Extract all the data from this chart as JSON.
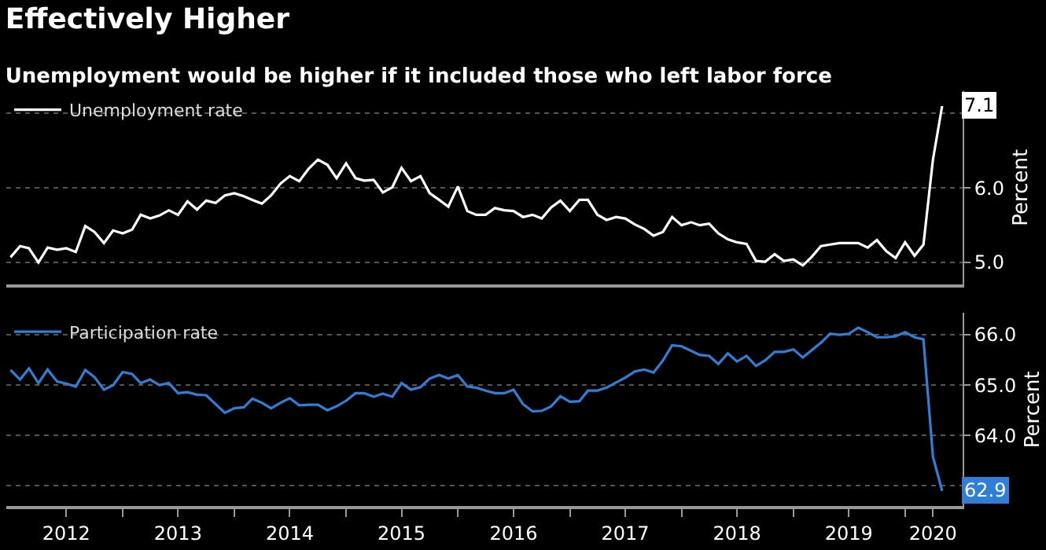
{
  "chart_data": [
    {
      "type": "line",
      "title": "Effectively Higher",
      "subtitle": "Unemployment would be higher if it included those who left labor force",
      "x": [
        "2012-01",
        "2012-02",
        "2012-03",
        "2012-04",
        "2012-05",
        "2012-06",
        "2012-07",
        "2012-08",
        "2012-09",
        "2012-10",
        "2012-11",
        "2012-12",
        "2013-01",
        "2013-02",
        "2013-03",
        "2013-04",
        "2013-05",
        "2013-06",
        "2013-07",
        "2013-08",
        "2013-09",
        "2013-10",
        "2013-11",
        "2013-12",
        "2014-01",
        "2014-02",
        "2014-03",
        "2014-04",
        "2014-05",
        "2014-06",
        "2014-07",
        "2014-08",
        "2014-09",
        "2014-10",
        "2014-11",
        "2014-12",
        "2015-01",
        "2015-02",
        "2015-03",
        "2015-04",
        "2015-05",
        "2015-06",
        "2015-07",
        "2015-08",
        "2015-09",
        "2015-10",
        "2015-11",
        "2015-12",
        "2016-01",
        "2016-02",
        "2016-03",
        "2016-04",
        "2016-05",
        "2016-06",
        "2016-07",
        "2016-08",
        "2016-09",
        "2016-10",
        "2016-11",
        "2016-12",
        "2017-01",
        "2017-02",
        "2017-03",
        "2017-04",
        "2017-05",
        "2017-06",
        "2017-07",
        "2017-08",
        "2017-09",
        "2017-10",
        "2017-11",
        "2017-12",
        "2018-01",
        "2018-02",
        "2018-03",
        "2018-04",
        "2018-05",
        "2018-06",
        "2018-07",
        "2018-08",
        "2018-09",
        "2018-10",
        "2018-11",
        "2018-12",
        "2019-01",
        "2019-02",
        "2019-03",
        "2019-04",
        "2019-05",
        "2019-06",
        "2019-07",
        "2019-08",
        "2019-09",
        "2019-10",
        "2019-11",
        "2019-12",
        "2020-01",
        "2020-02",
        "2020-03",
        "2020-04",
        "2020-05"
      ],
      "series": [
        {
          "name": "Unemployment rate",
          "color": "#ffffff",
          "values": [
            5.07,
            5.22,
            5.19,
            5.0,
            5.2,
            5.17,
            5.19,
            5.14,
            5.49,
            5.41,
            5.26,
            5.43,
            5.39,
            5.44,
            5.64,
            5.59,
            5.63,
            5.7,
            5.64,
            5.82,
            5.71,
            5.83,
            5.8,
            5.9,
            5.93,
            5.89,
            5.84,
            5.79,
            5.9,
            6.06,
            6.16,
            6.09,
            6.26,
            6.38,
            6.31,
            6.13,
            6.33,
            6.13,
            6.1,
            6.11,
            5.94,
            6.01,
            6.27,
            6.09,
            6.16,
            5.93,
            5.84,
            5.75,
            6.02,
            5.69,
            5.64,
            5.64,
            5.73,
            5.7,
            5.69,
            5.61,
            5.64,
            5.59,
            5.74,
            5.83,
            5.69,
            5.84,
            5.84,
            5.64,
            5.57,
            5.61,
            5.59,
            5.51,
            5.45,
            5.36,
            5.41,
            5.61,
            5.5,
            5.54,
            5.5,
            5.52,
            5.39,
            5.31,
            5.27,
            5.25,
            5.02,
            5.01,
            5.11,
            5.02,
            5.04,
            4.96,
            5.07,
            5.22,
            5.24,
            5.26,
            5.26,
            5.26,
            5.2,
            5.3,
            5.15,
            5.06,
            5.27,
            5.09,
            5.24,
            6.38,
            7.1
          ]
        }
      ],
      "annotations": [
        {
          "text": "7.1",
          "x": "2020-05",
          "y": 7.1
        }
      ],
      "xlim": [
        "2011-12-18",
        "2020-07-07"
      ],
      "ylim": [
        4.71,
        7.3
      ],
      "yticks": [
        {
          "value": 5.0,
          "label": "5.0"
        },
        {
          "value": 6.0,
          "label": "6.0"
        },
        {
          "value": 7.0,
          "label": null
        }
      ],
      "ylabel": "Percent",
      "grid": "y",
      "legend": "top left",
      "marker": "none",
      "line_style": "solid",
      "tick_labels": "y"
    },
    {
      "type": "line",
      "x": [
        "2012-01",
        "2012-02",
        "2012-03",
        "2012-04",
        "2012-05",
        "2012-06",
        "2012-07",
        "2012-08",
        "2012-09",
        "2012-10",
        "2012-11",
        "2012-12",
        "2013-01",
        "2013-02",
        "2013-03",
        "2013-04",
        "2013-05",
        "2013-06",
        "2013-07",
        "2013-08",
        "2013-09",
        "2013-10",
        "2013-11",
        "2013-12",
        "2014-01",
        "2014-02",
        "2014-03",
        "2014-04",
        "2014-05",
        "2014-06",
        "2014-07",
        "2014-08",
        "2014-09",
        "2014-10",
        "2014-11",
        "2014-12",
        "2015-01",
        "2015-02",
        "2015-03",
        "2015-04",
        "2015-05",
        "2015-06",
        "2015-07",
        "2015-08",
        "2015-09",
        "2015-10",
        "2015-11",
        "2015-12",
        "2016-01",
        "2016-02",
        "2016-03",
        "2016-04",
        "2016-05",
        "2016-06",
        "2016-07",
        "2016-08",
        "2016-09",
        "2016-10",
        "2016-11",
        "2016-12",
        "2017-01",
        "2017-02",
        "2017-03",
        "2017-04",
        "2017-05",
        "2017-06",
        "2017-07",
        "2017-08",
        "2017-09",
        "2017-10",
        "2017-11",
        "2017-12",
        "2018-01",
        "2018-02",
        "2018-03",
        "2018-04",
        "2018-05",
        "2018-06",
        "2018-07",
        "2018-08",
        "2018-09",
        "2018-10",
        "2018-11",
        "2018-12",
        "2019-01",
        "2019-02",
        "2019-03",
        "2019-04",
        "2019-05",
        "2019-06",
        "2019-07",
        "2019-08",
        "2019-09",
        "2019-10",
        "2019-11",
        "2019-12",
        "2020-01",
        "2020-02",
        "2020-03",
        "2020-04",
        "2020-05"
      ],
      "series": [
        {
          "name": "Participation rate",
          "color": "#2f7fd6",
          "values": [
            65.3,
            65.11,
            65.33,
            65.04,
            65.31,
            65.07,
            65.03,
            64.97,
            65.3,
            65.16,
            64.91,
            65.0,
            65.26,
            65.22,
            65.04,
            65.11,
            65.0,
            65.04,
            64.84,
            64.86,
            64.81,
            64.8,
            64.62,
            64.45,
            64.54,
            64.56,
            64.73,
            64.65,
            64.54,
            64.65,
            64.74,
            64.6,
            64.61,
            64.61,
            64.5,
            64.58,
            64.69,
            64.84,
            64.84,
            64.77,
            64.83,
            64.77,
            65.04,
            64.91,
            64.96,
            65.13,
            65.2,
            65.13,
            65.2,
            64.97,
            64.95,
            64.89,
            64.84,
            64.84,
            64.91,
            64.62,
            64.48,
            64.49,
            64.58,
            64.78,
            64.67,
            64.68,
            64.89,
            64.89,
            64.95,
            65.05,
            65.15,
            65.27,
            65.31,
            65.25,
            65.49,
            65.79,
            65.77,
            65.68,
            65.6,
            65.58,
            65.42,
            65.63,
            65.47,
            65.58,
            65.38,
            65.49,
            65.66,
            65.66,
            65.71,
            65.55,
            65.69,
            65.84,
            66.02,
            66.0,
            66.02,
            66.14,
            66.05,
            65.95,
            65.95,
            65.97,
            66.05,
            65.95,
            65.91,
            63.58,
            62.9
          ]
        }
      ],
      "annotations": [
        {
          "text": "62.9",
          "x": "2020-05",
          "y": 62.9
        }
      ],
      "xlim": [
        "2011-12-18",
        "2020-07-07"
      ],
      "xticks": [
        {
          "value": "2012-07-01",
          "label": "2012"
        },
        {
          "value": "2013-01-01",
          "label": null
        },
        {
          "value": "2013-07-01",
          "label": "2013"
        },
        {
          "value": "2014-01-01",
          "label": null
        },
        {
          "value": "2014-07-01",
          "label": "2014"
        },
        {
          "value": "2015-01-01",
          "label": null
        },
        {
          "value": "2015-07-01",
          "label": "2015"
        },
        {
          "value": "2016-01-01",
          "label": null
        },
        {
          "value": "2016-07-01",
          "label": "2016"
        },
        {
          "value": "2017-01-01",
          "label": null
        },
        {
          "value": "2017-07-01",
          "label": "2017"
        },
        {
          "value": "2018-01-01",
          "label": null
        },
        {
          "value": "2018-07-01",
          "label": "2018"
        },
        {
          "value": "2019-01-01",
          "label": null
        },
        {
          "value": "2019-07-01",
          "label": "2019"
        },
        {
          "value": "2020-01-01",
          "label": null
        },
        {
          "value": "2020-04-01",
          "label": "2020"
        }
      ],
      "ylim": [
        62.6,
        66.43
      ],
      "yticks": [
        {
          "value": 63.0,
          "label": null
        },
        {
          "value": 64.0,
          "label": "64.0"
        },
        {
          "value": 65.0,
          "label": "65.0"
        },
        {
          "value": 66.0,
          "label": "66.0"
        }
      ],
      "ylabel": "Percent",
      "grid": "y",
      "legend": "top left",
      "marker": "none",
      "line_style": "solid"
    }
  ]
}
